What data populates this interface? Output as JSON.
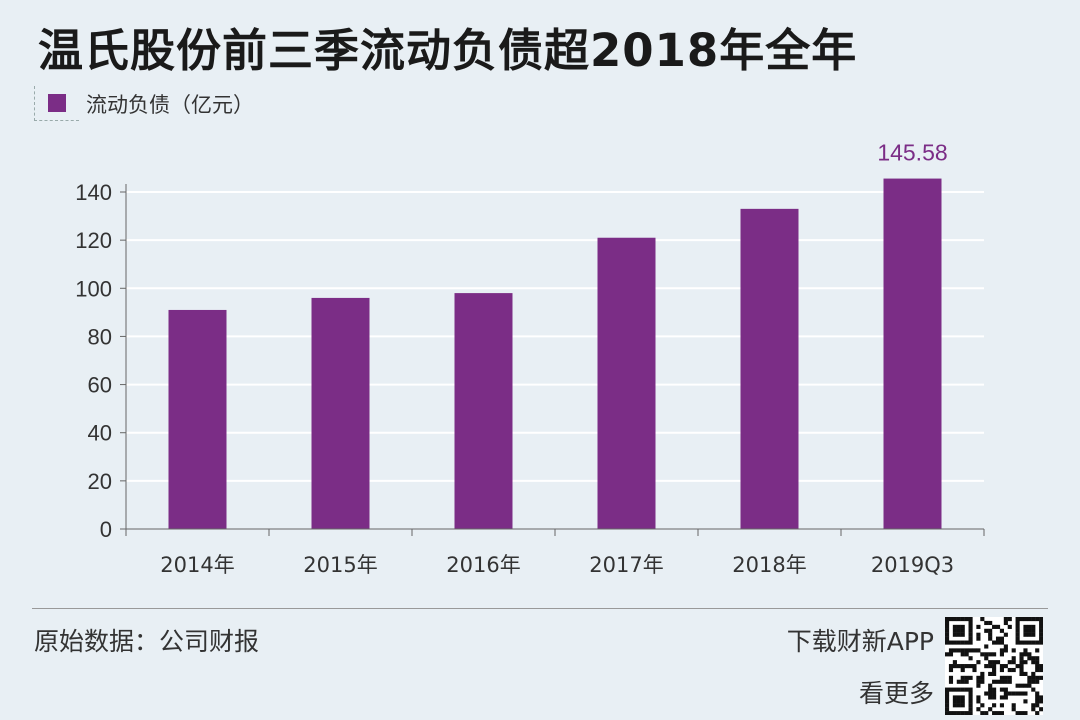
{
  "title": "温氏股份前三季流动负债超2018年全年",
  "legend_label": "流动负债（亿元）",
  "colors": {
    "bar": "#7b2d86",
    "background": "#e8eff4",
    "grid": "#ffffff"
  },
  "footer": {
    "source": "原始数据：公司财报",
    "promo_line1": "下载财新APP",
    "promo_line2": "看更多"
  },
  "chart_data": {
    "type": "bar",
    "categories": [
      "2014年",
      "2015年",
      "2016年",
      "2017年",
      "2018年",
      "2019Q3"
    ],
    "series": [
      {
        "name": "流动负债（亿元）",
        "values": [
          91,
          96,
          98,
          121,
          133,
          145.58
        ]
      }
    ],
    "data_labels": [
      {
        "category": "2019Q3",
        "text": "145.58"
      }
    ],
    "ylim": [
      0,
      140
    ],
    "yticks": [
      0,
      20,
      40,
      60,
      80,
      100,
      120,
      140
    ],
    "grid": true,
    "legend_position": "top-left"
  }
}
